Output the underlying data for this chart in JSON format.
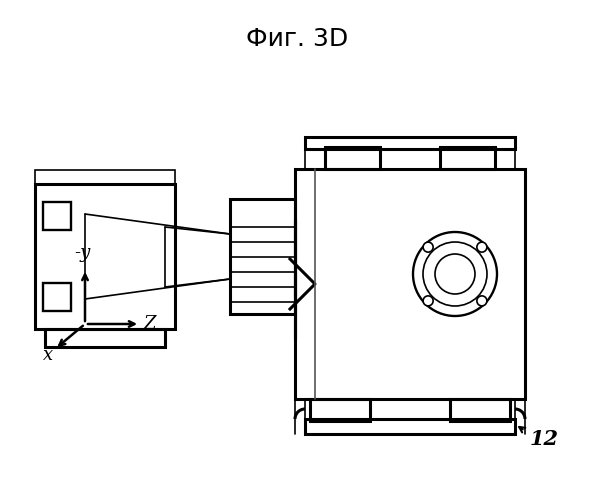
{
  "title": "Фиг. 3D",
  "label_12": "12",
  "axis_label_neg_y": "-y",
  "axis_label_x": "x",
  "axis_label_z": "Z",
  "bg_color": "#ffffff",
  "line_color": "#000000",
  "title_fontsize": 18,
  "annotation_fontsize": 13,
  "axis_label_fontsize": 13,
  "fig_width": 5.97,
  "fig_height": 4.99,
  "dpi": 100
}
